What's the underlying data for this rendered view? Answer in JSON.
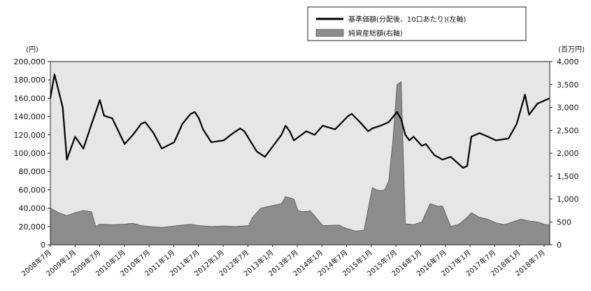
{
  "chart_data": {
    "type": "line",
    "legend": {
      "placement": "top-right",
      "nav_label": "基準価額(分配後、10口あたり)(左軸)",
      "assets_label": "純資産総額(右軸)"
    },
    "left_axis": {
      "unit": "(円)",
      "ylim": [
        0,
        200000
      ],
      "tick_labels": [
        "0",
        "20,000",
        "40,000",
        "60,000",
        "80,000",
        "100,000",
        "120,000",
        "140,000",
        "160,000",
        "180,000",
        "200,000"
      ]
    },
    "right_axis": {
      "unit": "(百万円)",
      "ylim": [
        0,
        4000
      ],
      "tick_labels": [
        "0",
        "500",
        "1,000",
        "1,500",
        "2,000",
        "2,500",
        "3,000",
        "3,500",
        "4,000"
      ]
    },
    "x_tick_labels": [
      "2008年7月",
      "2009年1月",
      "2009年7月",
      "2010年1月",
      "2010年7月",
      "2011年1月",
      "2011年7月",
      "2012年1月",
      "2012年7月",
      "2013年1月",
      "2013年7月",
      "2014年1月",
      "2014年7月",
      "2015年1月",
      "2015年7月",
      "2016年1月",
      "2016年7月",
      "2017年1月",
      "2017年7月",
      "2018年1月",
      "2018年7月"
    ],
    "grid": false,
    "background": "#e6e6e6",
    "colors": {
      "nav": "#000000",
      "assets": "#8c8c8c"
    },
    "series": [
      {
        "key": "nav",
        "axis": "left",
        "x": [
          "2008-07",
          "2008-08",
          "2008-10",
          "2008-11",
          "2009-01",
          "2009-03",
          "2009-05",
          "2009-07",
          "2009-08",
          "2009-10",
          "2010-01",
          "2010-03",
          "2010-05",
          "2010-06",
          "2010-08",
          "2010-10",
          "2011-01",
          "2011-03",
          "2011-05",
          "2011-06",
          "2011-07",
          "2011-08",
          "2011-10",
          "2012-01",
          "2012-03",
          "2012-05",
          "2012-06",
          "2012-09",
          "2012-11",
          "2013-01",
          "2013-03",
          "2013-04",
          "2013-05",
          "2013-06",
          "2013-09",
          "2013-11",
          "2014-01",
          "2014-04",
          "2014-07",
          "2014-08",
          "2014-10",
          "2014-12",
          "2015-01",
          "2015-03",
          "2015-05",
          "2015-07",
          "2015-08",
          "2015-09",
          "2015-10",
          "2015-11",
          "2016-01",
          "2016-02",
          "2016-04",
          "2016-06",
          "2016-08",
          "2016-10",
          "2016-11",
          "2016-12",
          "2017-01",
          "2017-03",
          "2017-05",
          "2017-07",
          "2017-10",
          "2017-12",
          "2018-01",
          "2018-02",
          "2018-03",
          "2018-05",
          "2018-07",
          "2018-08"
        ],
        "values": [
          160000,
          186000,
          150000,
          93000,
          118000,
          105000,
          132000,
          158000,
          141000,
          138000,
          110000,
          120000,
          132000,
          134000,
          122000,
          105000,
          112000,
          132000,
          143000,
          145000,
          138000,
          126000,
          112000,
          114000,
          121000,
          127000,
          124000,
          102000,
          96000,
          108000,
          120000,
          130000,
          124000,
          114000,
          124000,
          120000,
          130000,
          126000,
          140000,
          143000,
          134000,
          124000,
          127000,
          130000,
          134000,
          145000,
          137000,
          120000,
          114000,
          118000,
          108000,
          110000,
          98000,
          93000,
          96000,
          88000,
          84000,
          86000,
          118000,
          122000,
          118000,
          114000,
          116000,
          132000,
          148000,
          164000,
          142000,
          154000,
          158000,
          160000
        ]
      },
      {
        "key": "assets",
        "axis": "right",
        "x": [
          "2008-07",
          "2008-09",
          "2008-11",
          "2009-01",
          "2009-03",
          "2009-05",
          "2009-06",
          "2009-07",
          "2009-10",
          "2010-01",
          "2010-03",
          "2010-05",
          "2010-07",
          "2010-10",
          "2011-01",
          "2011-03",
          "2011-05",
          "2011-07",
          "2011-10",
          "2012-01",
          "2012-04",
          "2012-07",
          "2012-08",
          "2012-10",
          "2013-01",
          "2013-03",
          "2013-04",
          "2013-06",
          "2013-07",
          "2013-08",
          "2013-10",
          "2014-01",
          "2014-05",
          "2014-06",
          "2014-09",
          "2014-11",
          "2015-01",
          "2015-02",
          "2015-03",
          "2015-04",
          "2015-05",
          "2015-06",
          "2015-07",
          "2015-08",
          "2015-09",
          "2015-11",
          "2016-01",
          "2016-03",
          "2016-05",
          "2016-06",
          "2016-08",
          "2016-10",
          "2016-12",
          "2017-01",
          "2017-03",
          "2017-05",
          "2017-07",
          "2017-09",
          "2017-11",
          "2018-01",
          "2018-03",
          "2018-05",
          "2018-07",
          "2018-08"
        ],
        "values": [
          800,
          700,
          640,
          700,
          750,
          720,
          400,
          450,
          440,
          450,
          470,
          420,
          400,
          380,
          410,
          430,
          450,
          420,
          400,
          410,
          400,
          420,
          600,
          800,
          860,
          900,
          1050,
          1000,
          750,
          720,
          740,
          420,
          430,
          380,
          300,
          320,
          1250,
          1200,
          1180,
          1200,
          1400,
          2300,
          3500,
          3560,
          460,
          440,
          500,
          900,
          840,
          850,
          400,
          450,
          600,
          700,
          600,
          560,
          480,
          440,
          500,
          560,
          520,
          500,
          440,
          440
        ]
      }
    ]
  }
}
